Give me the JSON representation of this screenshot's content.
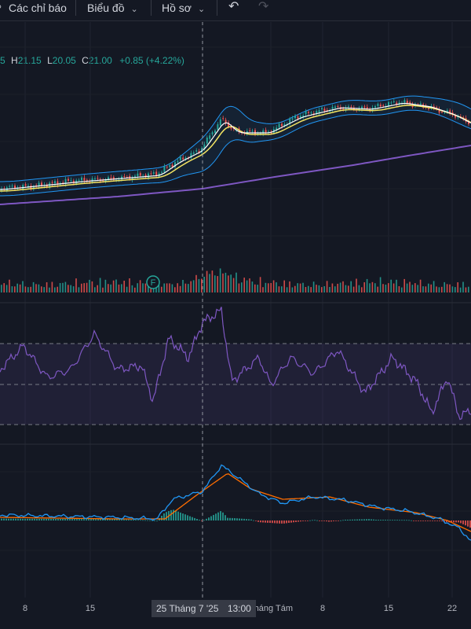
{
  "toolbar": {
    "cut_icon": "search-icon",
    "indicators": "Các chỉ báo",
    "chart": "Biểu đồ",
    "profile": "Hồ sơ",
    "undo_icon": "undo-icon",
    "redo_icon": "redo-icon"
  },
  "ohlc": {
    "open_cut": "5",
    "h_label": "H",
    "high": "21.15",
    "l_label": "L",
    "low": "20.05",
    "c_label": "C",
    "close": "21.00",
    "change": "+0.85 (+4.22%)"
  },
  "crosshair": {
    "date": "25 Tháng 7 '25",
    "time": "13:00"
  },
  "x_axis": {
    "ticks": [
      "8",
      "15",
      "Tháng Tám",
      "8",
      "15",
      "22"
    ]
  },
  "marker": {
    "label": "F"
  },
  "colors": {
    "up": "#26a69a",
    "down": "#ef5350",
    "bollinger": "#2196f3",
    "ma_fast": "#ffffff",
    "ma_slow": "#f5e663",
    "ma_long": "#7e57c2",
    "rsi": "#7e57c2",
    "macd": "#2196f3",
    "signal": "#ff6d00"
  }
}
